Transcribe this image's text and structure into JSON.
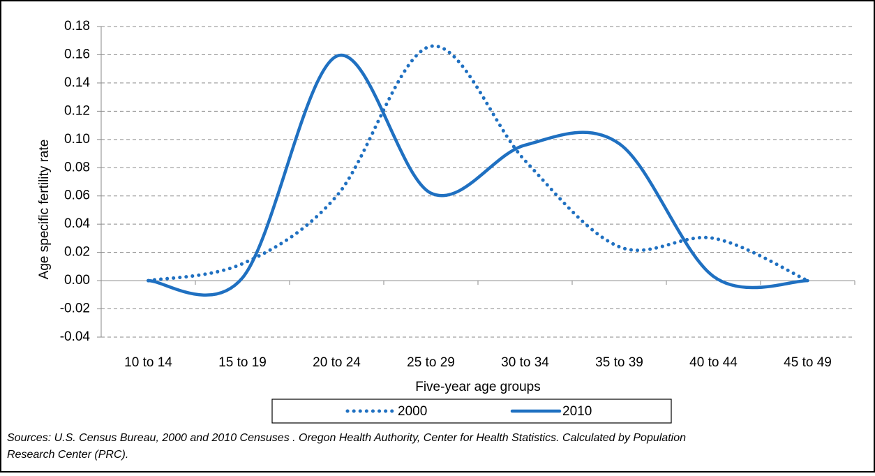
{
  "chart_data": {
    "type": "line",
    "y_label": "Age specific fertility rate",
    "x_label": "Five-year age groups",
    "categories": [
      "10 to 14",
      "15 to 19",
      "20 to 24",
      "25 to 29",
      "30 to 34",
      "35 to 39",
      "40 to 44",
      "45 to 49"
    ],
    "series": [
      {
        "name": "2000",
        "color": "#1f70c1",
        "line_style": "dotted",
        "values": [
          0,
          0.012,
          0.06,
          0.166,
          0.085,
          0.024,
          0.03,
          0
        ]
      },
      {
        "name": "2010",
        "color": "#1f70c1",
        "line_style": "solid",
        "values": [
          0,
          0.002,
          0.159,
          0.062,
          0.096,
          0.097,
          0.003,
          0
        ]
      }
    ],
    "ylim": [
      -0.04,
      0.18
    ],
    "yticks": [
      -0.04,
      -0.02,
      {
        "value": 0,
        "label": "0.00"
      },
      0.02,
      0.04,
      0.06,
      0.08,
      {
        "value": 0.1,
        "label": "0.10"
      },
      0.12,
      0.14,
      0.16,
      0.18
    ],
    "grid": true,
    "smooth": true,
    "source": [
      "Sources: U.S. Census Bureau, 2000 and 2010 Censuses . Oregon Health Authority, Center for Health Statistics. Calculated by Population",
      "Research Center (PRC)."
    ]
  }
}
